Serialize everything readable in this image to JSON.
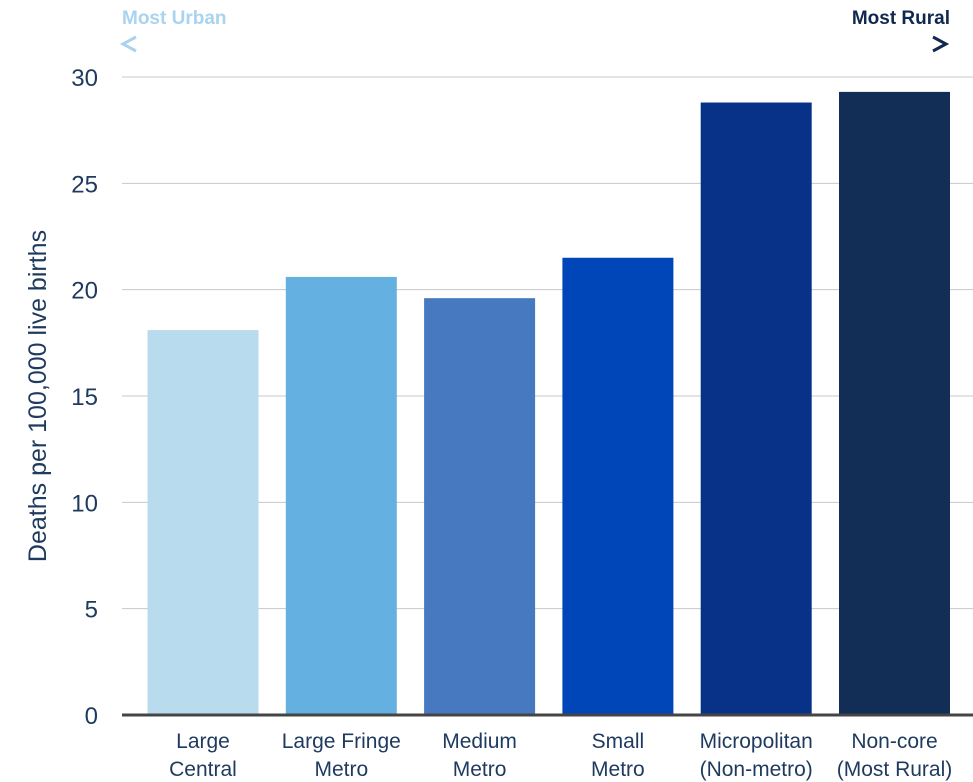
{
  "chart_data": {
    "type": "bar",
    "ylabel": "Deaths per 100,000 live births",
    "ylim": [
      0,
      30
    ],
    "yticks": [
      0,
      5,
      10,
      15,
      20,
      25,
      30
    ],
    "grid": true,
    "categories": [
      [
        "Large",
        "Central"
      ],
      [
        "Large Fringe",
        "Metro"
      ],
      [
        "Medium",
        "Metro"
      ],
      [
        "Small",
        "Metro"
      ],
      [
        "Micropolitan",
        "(Non-metro)"
      ],
      [
        "Non-core",
        "(Most Rural)"
      ]
    ],
    "values": [
      18.1,
      20.6,
      19.6,
      21.5,
      28.8,
      29.3
    ],
    "bar_colors": [
      "#b9dbee",
      "#64b0e0",
      "#4679bf",
      "#0046b8",
      "#083287",
      "#122e56"
    ],
    "arrow": {
      "left_label": "Most Urban",
      "right_label": "Most Rural",
      "left_color": "#a9d3ef",
      "right_color": "#10284f"
    }
  },
  "colors": {
    "text": "#1e3a5f",
    "grid": "#c8c8c8",
    "axis": "#444444"
  }
}
